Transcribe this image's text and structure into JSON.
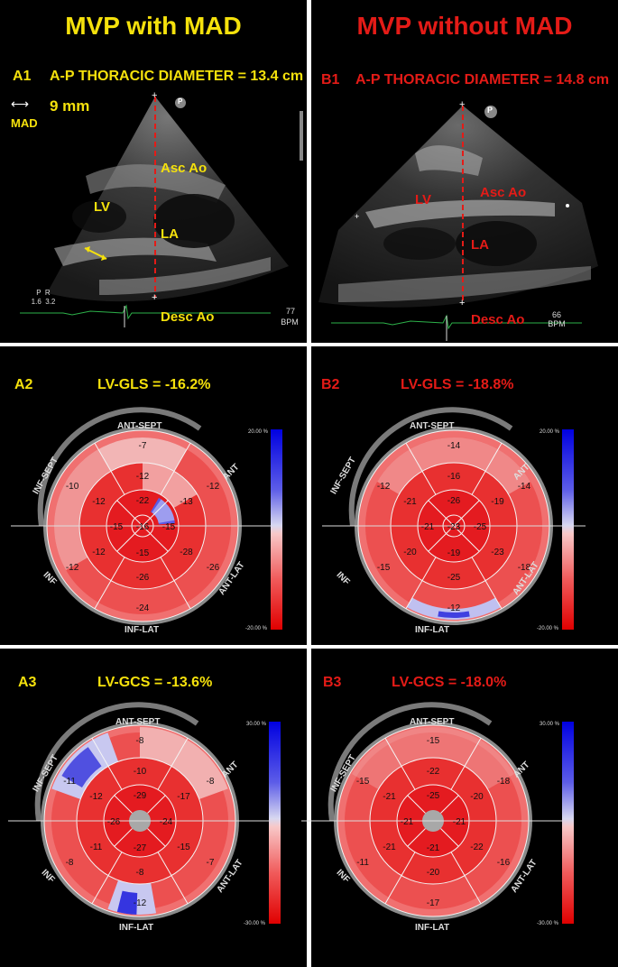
{
  "headers": {
    "a": "MVP with MAD",
    "b": "MVP without MAD"
  },
  "row1": {
    "a": {
      "label": "A1",
      "title": "A-P THORACIC DIAMETER = 13.4 cm",
      "mad_measure": "9 mm",
      "mad_word": "MAD",
      "lv": "LV",
      "asc": "Asc Ao",
      "la": "LA",
      "desc": "Desc Ao",
      "hr": "77",
      "bpm": "BPM",
      "p": "P",
      "corner": "P  R\n1.6  3.2"
    },
    "b": {
      "label": "B1",
      "title": "A-P THORACIC DIAMETER = 14.8 cm",
      "lv": "LV",
      "asc": "Asc Ao",
      "la": "LA",
      "desc": "Desc Ao",
      "hr": "66",
      "bpm": "BPM",
      "p": "P"
    }
  },
  "row2": {
    "a": {
      "label": "A2",
      "title": "LV-GLS = -16.2%",
      "values": {
        "outer": [
          "-7",
          "-12",
          "-26",
          "-24",
          "-12",
          "-10"
        ],
        "mid": [
          "-12",
          "-13",
          "-28",
          "-26",
          "-12",
          "-12"
        ],
        "apical": [
          "-22",
          "-15",
          "-15",
          "-15"
        ],
        "apex": "-16"
      }
    },
    "b": {
      "label": "B2",
      "title": "LV-GLS = -18.8%",
      "values": {
        "outer": [
          "-14",
          "-14",
          "-18",
          "-12",
          "-15",
          "-12"
        ],
        "mid": [
          "-16",
          "-19",
          "-23",
          "-25",
          "-20",
          "-21"
        ],
        "apical": [
          "-26",
          "-25",
          "-19",
          "-21"
        ],
        "apex": "-23"
      }
    },
    "scale": {
      "top": "20.00 %",
      "bottom": "-20.00 %"
    }
  },
  "row3": {
    "a": {
      "label": "A3",
      "title": "LV-GCS = -13.6%",
      "values": {
        "outer": [
          "-8",
          "-8",
          "-7",
          "-12",
          "-8",
          "-11"
        ],
        "mid": [
          "-10",
          "-17",
          "-15",
          "-8",
          "-11",
          "-12"
        ],
        "apical": [
          "-29",
          "-24",
          "-27",
          "-26"
        ]
      }
    },
    "b": {
      "label": "B3",
      "title": "LV-GCS = -18.0%",
      "values": {
        "outer": [
          "-15",
          "-18",
          "-16",
          "-17",
          "-11",
          "-15"
        ],
        "mid": [
          "-22",
          "-20",
          "-22",
          "-20",
          "-21",
          "-21"
        ],
        "apical": [
          "-25",
          "-21",
          "-21",
          "-21"
        ]
      }
    },
    "scale": {
      "top": "30.00 %",
      "bottom": "-30.00 %"
    }
  },
  "segments": {
    "ant_sept": "ANT-SEPT",
    "ant": "ANT",
    "ant_lat": "ANT-LAT",
    "inf_lat": "INF-LAT",
    "inf": "INF",
    "inf_sept": "INF-SEPT"
  },
  "colors": {
    "yellow": "#f5e10c",
    "red": "#e41b17",
    "map_red": "#e8202a",
    "map_blue": "#3a3ae0"
  }
}
